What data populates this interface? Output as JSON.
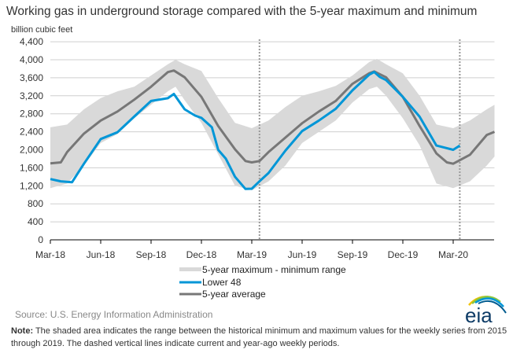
{
  "chart_data": {
    "type": "line",
    "title": "Working gas in underground storage compared with the 5-year maximum and minimum",
    "ylabel": "billion cubic feet",
    "xlabel": "",
    "ylim": [
      0,
      4400
    ],
    "yticks": [
      0,
      400,
      800,
      1200,
      1600,
      2000,
      2400,
      2800,
      3200,
      3600,
      4000,
      4400
    ],
    "ytick_labels": [
      "0",
      "400",
      "800",
      "1,200",
      "1,600",
      "2,000",
      "2,400",
      "2,800",
      "3,200",
      "3,600",
      "4,000",
      "4,400"
    ],
    "xticks": [
      "2018-03-01",
      "2018-06-01",
      "2018-09-01",
      "2018-12-01",
      "2019-03-01",
      "2019-06-01",
      "2019-09-01",
      "2019-12-01",
      "2020-03-01"
    ],
    "xtick_labels": [
      "Mar-18",
      "Jun-18",
      "Sep-18",
      "Dec-18",
      "Mar-19",
      "Jun-19",
      "Sep-19",
      "Dec-19",
      "Mar-20"
    ],
    "xlim": [
      "2018-03-01",
      "2020-05-15"
    ],
    "grid": true,
    "legend_position": "bottom",
    "band": {
      "name": "5-year maximum - minimum range",
      "color": "#d9d9d9",
      "x": [
        "2018-03-01",
        "2018-04-01",
        "2018-05-01",
        "2018-06-01",
        "2018-07-01",
        "2018-08-01",
        "2018-09-01",
        "2018-10-01",
        "2018-10-15",
        "2018-11-01",
        "2018-12-01",
        "2019-01-01",
        "2019-02-01",
        "2019-03-01",
        "2019-04-01",
        "2019-05-01",
        "2019-06-01",
        "2019-07-01",
        "2019-08-01",
        "2019-09-01",
        "2019-10-01",
        "2019-10-15",
        "2019-11-01",
        "2019-12-01",
        "2020-01-01",
        "2020-02-01",
        "2020-03-01",
        "2020-04-01",
        "2020-05-01",
        "2020-05-15"
      ],
      "max": [
        2500,
        2560,
        2900,
        3150,
        3300,
        3400,
        3650,
        3900,
        4000,
        3900,
        3750,
        3150,
        2600,
        2480,
        2650,
        2950,
        3200,
        3300,
        3420,
        3650,
        3950,
        4020,
        3900,
        3700,
        3200,
        2560,
        2480,
        2650,
        2900,
        3000
      ],
      "min": [
        1150,
        1250,
        1650,
        2150,
        2350,
        2700,
        3000,
        3300,
        3400,
        3100,
        2600,
        1900,
        1200,
        1100,
        1300,
        1650,
        2150,
        2400,
        2650,
        3050,
        3350,
        3400,
        3200,
        2700,
        2100,
        1250,
        1150,
        1300,
        1650,
        1850
      ]
    },
    "series": [
      {
        "name": "Lower 48",
        "color": "#0096d7",
        "x": [
          "2018-03-01",
          "2018-03-20",
          "2018-04-10",
          "2018-05-01",
          "2018-06-01",
          "2018-07-01",
          "2018-08-01",
          "2018-09-01",
          "2018-10-01",
          "2018-10-12",
          "2018-10-20",
          "2018-11-01",
          "2018-11-20",
          "2018-12-01",
          "2018-12-20",
          "2019-01-01",
          "2019-01-15",
          "2019-02-01",
          "2019-02-20",
          "2019-03-01",
          "2019-03-15",
          "2019-04-01",
          "2019-05-01",
          "2019-06-01",
          "2019-07-01",
          "2019-08-01",
          "2019-09-01",
          "2019-10-01",
          "2019-10-10",
          "2019-10-20",
          "2019-11-01",
          "2019-12-01",
          "2020-01-01",
          "2020-02-01",
          "2020-02-15",
          "2020-03-01",
          "2020-03-13"
        ],
        "values": [
          1350,
          1300,
          1280,
          1690,
          2240,
          2390,
          2740,
          3085,
          3145,
          3240,
          3100,
          2900,
          2760,
          2710,
          2500,
          2000,
          1800,
          1400,
          1130,
          1135,
          1300,
          1485,
          1980,
          2415,
          2650,
          2910,
          3320,
          3670,
          3730,
          3620,
          3550,
          3175,
          2735,
          2095,
          2050,
          2000,
          2095
        ]
      },
      {
        "name": "5-year average",
        "color": "#777777",
        "x": [
          "2018-03-01",
          "2018-03-20",
          "2018-04-01",
          "2018-05-01",
          "2018-06-01",
          "2018-07-01",
          "2018-08-01",
          "2018-09-01",
          "2018-10-01",
          "2018-10-12",
          "2018-11-01",
          "2018-12-01",
          "2019-01-01",
          "2019-02-01",
          "2019-02-20",
          "2019-03-01",
          "2019-03-15",
          "2019-04-01",
          "2019-05-01",
          "2019-06-01",
          "2019-07-01",
          "2019-08-01",
          "2019-09-01",
          "2019-10-01",
          "2019-10-10",
          "2019-11-01",
          "2019-12-01",
          "2020-01-01",
          "2020-02-01",
          "2020-02-20",
          "2020-03-01",
          "2020-04-01",
          "2020-05-01",
          "2020-05-15"
        ],
        "values": [
          1700,
          1720,
          1950,
          2360,
          2650,
          2850,
          3115,
          3400,
          3725,
          3760,
          3610,
          3175,
          2530,
          2010,
          1750,
          1720,
          1750,
          1950,
          2270,
          2590,
          2850,
          3085,
          3465,
          3700,
          3740,
          3610,
          3175,
          2530,
          1920,
          1720,
          1690,
          1890,
          2330,
          2400
        ]
      }
    ],
    "vlines": {
      "dates": [
        "2019-03-15",
        "2020-03-13"
      ],
      "style": "dashed",
      "color": "#999999"
    },
    "source": "Source:  U.S. Energy Information Administration",
    "note_bold": "Note:",
    "note_line1": " The shaded area indicates the range between the historical minimum and maximum values for the weekly series from 2015",
    "note_line2": "through 2019. The dashed vertical lines indicate current and year-ago weekly periods.",
    "logo_text": "eia"
  }
}
